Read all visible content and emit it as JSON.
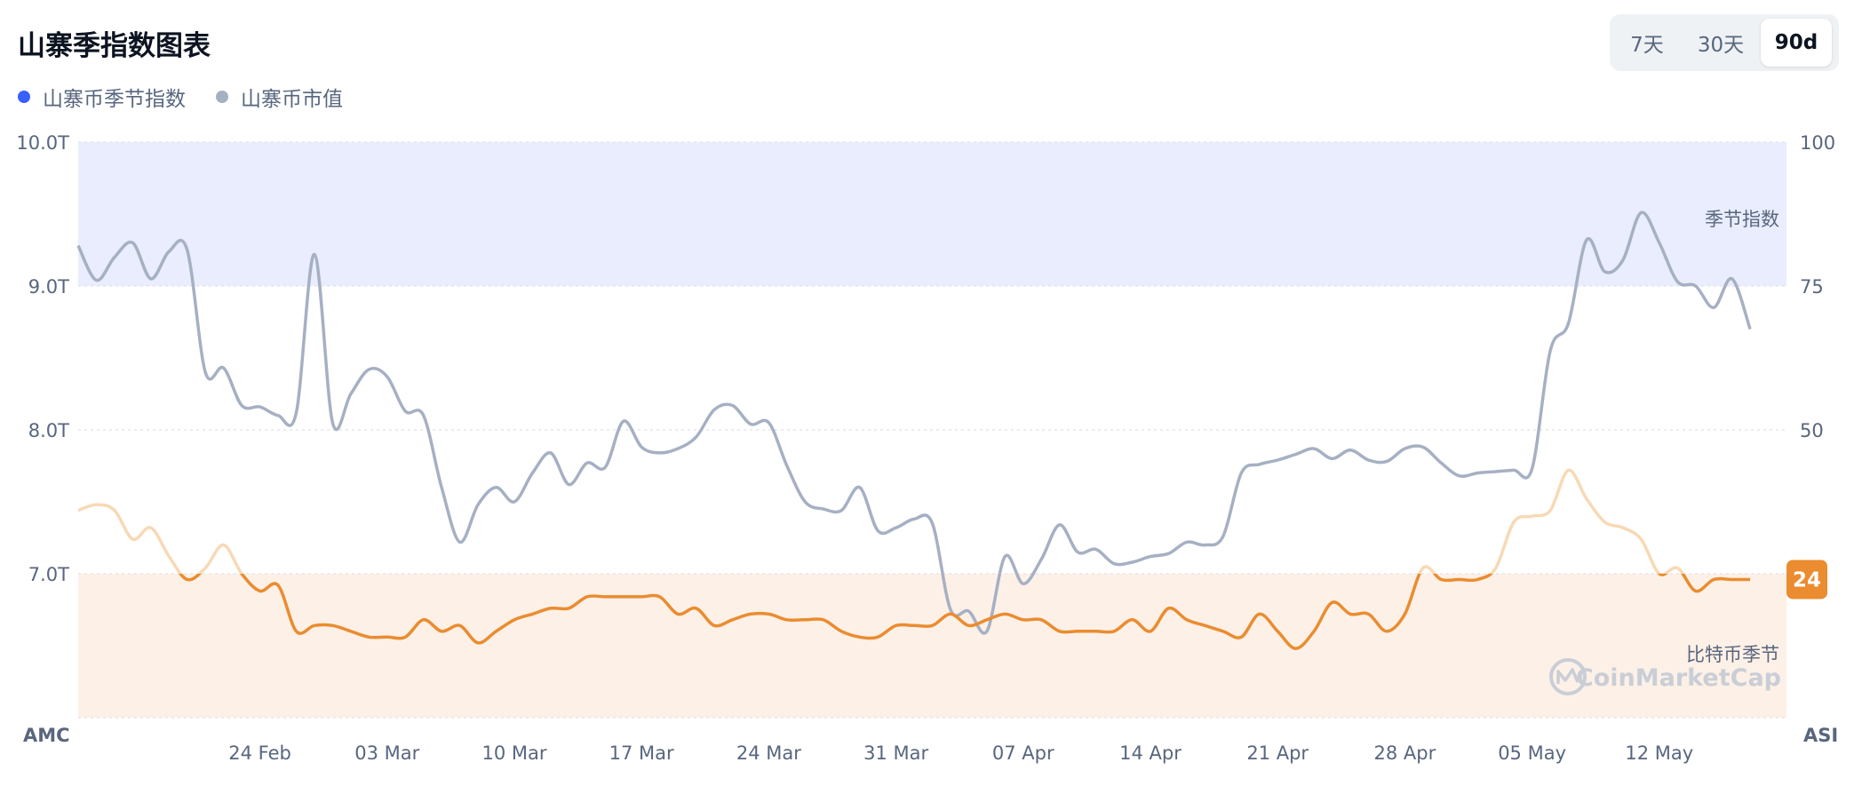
{
  "header": {
    "title": "山寨季指数图表"
  },
  "legend": [
    {
      "label": "山寨币季节指数",
      "color": "#3861fb"
    },
    {
      "label": "山寨币市值",
      "color": "#a6b0c3"
    }
  ],
  "range_toggle": {
    "options": [
      "7天",
      "30天",
      "90d"
    ],
    "selected": "90d"
  },
  "chart_data": {
    "type": "line",
    "x_tick_labels": [
      "24 Feb",
      "03 Mar",
      "10 Mar",
      "17 Mar",
      "24 Mar",
      "31 Mar",
      "07 Apr",
      "14 Apr",
      "21 Apr",
      "28 Apr",
      "05 May",
      "12 May"
    ],
    "x_date_range": [
      "2025-02-14",
      "2025-05-19"
    ],
    "left_axis": {
      "label": "AMC",
      "ticks": [
        "10.0T",
        "9.0T",
        "8.0T",
        "7.0T"
      ],
      "unit": "T",
      "ylim": [
        6.0,
        10.0
      ]
    },
    "right_axis": {
      "label": "ASI",
      "ticks": [
        "100",
        "75",
        "50"
      ],
      "ylim": [
        0,
        100
      ]
    },
    "bands": [
      {
        "label": "季节指数",
        "from": 75,
        "to": 100,
        "color": "#e9edfd"
      },
      {
        "label": "比特币季节",
        "from": 0,
        "to": 25,
        "color": "#fdf0e7"
      }
    ],
    "current_value_badge": "24",
    "watermark": "CoinMarketCap",
    "series": [
      {
        "name": "山寨币市值",
        "axis": "left",
        "color": "#a6b0c3",
        "points": [
          [
            "2025-02-14",
            9.28
          ],
          [
            "2025-02-15",
            9.04
          ],
          [
            "2025-02-16",
            9.2
          ],
          [
            "2025-02-17",
            9.3
          ],
          [
            "2025-02-18",
            9.05
          ],
          [
            "2025-02-19",
            9.24
          ],
          [
            "2025-02-20",
            9.25
          ],
          [
            "2025-02-21",
            8.4
          ],
          [
            "2025-02-22",
            8.43
          ],
          [
            "2025-02-23",
            8.17
          ],
          [
            "2025-02-24",
            8.16
          ],
          [
            "2025-02-25",
            8.1
          ],
          [
            "2025-02-26",
            8.12
          ],
          [
            "2025-02-27",
            9.22
          ],
          [
            "2025-02-28",
            8.05
          ],
          [
            "2025-03-01",
            8.25
          ],
          [
            "2025-03-02",
            8.42
          ],
          [
            "2025-03-03",
            8.37
          ],
          [
            "2025-03-04",
            8.13
          ],
          [
            "2025-03-05",
            8.1
          ],
          [
            "2025-03-06",
            7.6
          ],
          [
            "2025-03-07",
            7.22
          ],
          [
            "2025-03-08",
            7.48
          ],
          [
            "2025-03-09",
            7.6
          ],
          [
            "2025-03-10",
            7.5
          ],
          [
            "2025-03-11",
            7.7
          ],
          [
            "2025-03-12",
            7.84
          ],
          [
            "2025-03-13",
            7.62
          ],
          [
            "2025-03-14",
            7.77
          ],
          [
            "2025-03-15",
            7.74
          ],
          [
            "2025-03-16",
            8.06
          ],
          [
            "2025-03-17",
            7.88
          ],
          [
            "2025-03-18",
            7.84
          ],
          [
            "2025-03-19",
            7.87
          ],
          [
            "2025-03-20",
            7.95
          ],
          [
            "2025-03-21",
            8.14
          ],
          [
            "2025-03-22",
            8.17
          ],
          [
            "2025-03-23",
            8.04
          ],
          [
            "2025-03-24",
            8.05
          ],
          [
            "2025-03-25",
            7.75
          ],
          [
            "2025-03-26",
            7.5
          ],
          [
            "2025-03-27",
            7.45
          ],
          [
            "2025-03-28",
            7.44
          ],
          [
            "2025-03-29",
            7.6
          ],
          [
            "2025-03-30",
            7.3
          ],
          [
            "2025-03-31",
            7.32
          ],
          [
            "2025-04-01",
            7.38
          ],
          [
            "2025-04-02",
            7.35
          ],
          [
            "2025-04-03",
            6.75
          ],
          [
            "2025-04-04",
            6.74
          ],
          [
            "2025-04-05",
            6.6
          ],
          [
            "2025-04-06",
            7.12
          ],
          [
            "2025-04-07",
            6.93
          ],
          [
            "2025-04-08",
            7.1
          ],
          [
            "2025-04-09",
            7.34
          ],
          [
            "2025-04-10",
            7.15
          ],
          [
            "2025-04-11",
            7.17
          ],
          [
            "2025-04-12",
            7.07
          ],
          [
            "2025-04-13",
            7.08
          ],
          [
            "2025-04-14",
            7.12
          ],
          [
            "2025-04-15",
            7.14
          ],
          [
            "2025-04-16",
            7.22
          ],
          [
            "2025-04-17",
            7.2
          ],
          [
            "2025-04-18",
            7.26
          ],
          [
            "2025-04-19",
            7.7
          ],
          [
            "2025-04-20",
            7.76
          ],
          [
            "2025-04-21",
            7.79
          ],
          [
            "2025-04-22",
            7.83
          ],
          [
            "2025-04-23",
            7.87
          ],
          [
            "2025-04-24",
            7.8
          ],
          [
            "2025-04-25",
            7.86
          ],
          [
            "2025-04-26",
            7.79
          ],
          [
            "2025-04-27",
            7.78
          ],
          [
            "2025-04-28",
            7.87
          ],
          [
            "2025-04-29",
            7.88
          ],
          [
            "2025-04-30",
            7.77
          ],
          [
            "2025-05-01",
            7.68
          ],
          [
            "2025-05-02",
            7.7
          ],
          [
            "2025-05-03",
            7.71
          ],
          [
            "2025-05-04",
            7.72
          ],
          [
            "2025-05-05",
            7.73
          ],
          [
            "2025-05-06",
            8.55
          ],
          [
            "2025-05-07",
            8.74
          ],
          [
            "2025-05-08",
            9.32
          ],
          [
            "2025-05-09",
            9.1
          ],
          [
            "2025-05-10",
            9.18
          ],
          [
            "2025-05-11",
            9.51
          ],
          [
            "2025-05-12",
            9.3
          ],
          [
            "2025-05-13",
            9.03
          ],
          [
            "2025-05-14",
            9.0
          ],
          [
            "2025-05-15",
            8.85
          ],
          [
            "2025-05-16",
            9.05
          ],
          [
            "2025-05-17",
            8.7
          ]
        ]
      },
      {
        "name": "山寨币季节指数",
        "axis": "right",
        "color": "#ea8c2f",
        "color_above_25": "#f8d9b5",
        "points": [
          [
            "2025-02-14",
            36
          ],
          [
            "2025-02-15",
            37
          ],
          [
            "2025-02-16",
            36
          ],
          [
            "2025-02-17",
            31
          ],
          [
            "2025-02-18",
            33
          ],
          [
            "2025-02-19",
            28
          ],
          [
            "2025-02-20",
            24
          ],
          [
            "2025-02-21",
            26
          ],
          [
            "2025-02-22",
            30
          ],
          [
            "2025-02-23",
            25
          ],
          [
            "2025-02-24",
            22
          ],
          [
            "2025-02-25",
            23
          ],
          [
            "2025-02-26",
            15
          ],
          [
            "2025-02-27",
            16
          ],
          [
            "2025-02-28",
            16
          ],
          [
            "2025-03-01",
            15
          ],
          [
            "2025-03-02",
            14
          ],
          [
            "2025-03-03",
            14
          ],
          [
            "2025-03-04",
            14
          ],
          [
            "2025-03-05",
            17
          ],
          [
            "2025-03-06",
            15
          ],
          [
            "2025-03-07",
            16
          ],
          [
            "2025-03-08",
            13
          ],
          [
            "2025-03-09",
            15
          ],
          [
            "2025-03-10",
            17
          ],
          [
            "2025-03-11",
            18
          ],
          [
            "2025-03-12",
            19
          ],
          [
            "2025-03-13",
            19
          ],
          [
            "2025-03-14",
            21
          ],
          [
            "2025-03-15",
            21
          ],
          [
            "2025-03-16",
            21
          ],
          [
            "2025-03-17",
            21
          ],
          [
            "2025-03-18",
            21
          ],
          [
            "2025-03-19",
            18
          ],
          [
            "2025-03-20",
            19
          ],
          [
            "2025-03-21",
            16
          ],
          [
            "2025-03-22",
            17
          ],
          [
            "2025-03-23",
            18
          ],
          [
            "2025-03-24",
            18
          ],
          [
            "2025-03-25",
            17
          ],
          [
            "2025-03-26",
            17
          ],
          [
            "2025-03-27",
            17
          ],
          [
            "2025-03-28",
            15
          ],
          [
            "2025-03-29",
            14
          ],
          [
            "2025-03-30",
            14
          ],
          [
            "2025-03-31",
            16
          ],
          [
            "2025-04-01",
            16
          ],
          [
            "2025-04-02",
            16
          ],
          [
            "2025-04-03",
            18
          ],
          [
            "2025-04-04",
            16
          ],
          [
            "2025-04-05",
            17
          ],
          [
            "2025-04-06",
            18
          ],
          [
            "2025-04-07",
            17
          ],
          [
            "2025-04-08",
            17
          ],
          [
            "2025-04-09",
            15
          ],
          [
            "2025-04-10",
            15
          ],
          [
            "2025-04-11",
            15
          ],
          [
            "2025-04-12",
            15
          ],
          [
            "2025-04-13",
            17
          ],
          [
            "2025-04-14",
            15
          ],
          [
            "2025-04-15",
            19
          ],
          [
            "2025-04-16",
            17
          ],
          [
            "2025-04-17",
            16
          ],
          [
            "2025-04-18",
            15
          ],
          [
            "2025-04-19",
            14
          ],
          [
            "2025-04-20",
            18
          ],
          [
            "2025-04-21",
            15
          ],
          [
            "2025-04-22",
            12
          ],
          [
            "2025-04-23",
            15
          ],
          [
            "2025-04-24",
            20
          ],
          [
            "2025-04-25",
            18
          ],
          [
            "2025-04-26",
            18
          ],
          [
            "2025-04-27",
            15
          ],
          [
            "2025-04-28",
            18
          ],
          [
            "2025-04-29",
            26
          ],
          [
            "2025-04-30",
            24
          ],
          [
            "2025-05-01",
            24
          ],
          [
            "2025-05-02",
            24
          ],
          [
            "2025-05-03",
            26
          ],
          [
            "2025-05-04",
            34
          ],
          [
            "2025-05-05",
            35
          ],
          [
            "2025-05-06",
            36
          ],
          [
            "2025-05-07",
            43
          ],
          [
            "2025-05-08",
            38
          ],
          [
            "2025-05-09",
            34
          ],
          [
            "2025-05-10",
            33
          ],
          [
            "2025-05-11",
            31
          ],
          [
            "2025-05-12",
            25
          ],
          [
            "2025-05-13",
            26
          ],
          [
            "2025-05-14",
            22
          ],
          [
            "2025-05-15",
            24
          ],
          [
            "2025-05-16",
            24
          ],
          [
            "2025-05-17",
            24
          ]
        ]
      }
    ]
  }
}
